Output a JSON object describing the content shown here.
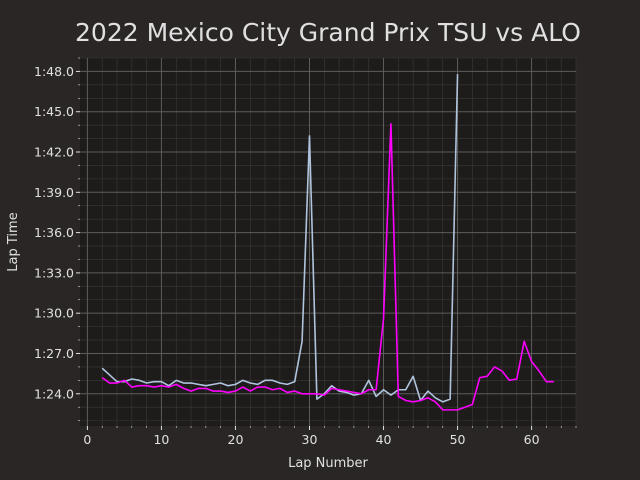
{
  "chart_data": {
    "type": "line",
    "title": "2022 Mexico City Grand Prix TSU vs ALO",
    "xlabel": "Lap Number",
    "ylabel": "Lap Time",
    "xlim": [
      -1,
      66
    ],
    "ylim": [
      81.6,
      109.0
    ],
    "x_ticks": [
      {
        "value": 0,
        "label": "0"
      },
      {
        "value": 10,
        "label": "10"
      },
      {
        "value": 20,
        "label": "20"
      },
      {
        "value": 30,
        "label": "30"
      },
      {
        "value": 40,
        "label": "40"
      },
      {
        "value": 50,
        "label": "50"
      },
      {
        "value": 60,
        "label": "60"
      }
    ],
    "y_ticks": [
      {
        "value": 84,
        "label": "1:24.0"
      },
      {
        "value": 87,
        "label": "1:27.0"
      },
      {
        "value": 90,
        "label": "1:30.0"
      },
      {
        "value": 93,
        "label": "1:33.0"
      },
      {
        "value": 96,
        "label": "1:36.0"
      },
      {
        "value": 99,
        "label": "1:39.0"
      },
      {
        "value": 102,
        "label": "1:42.0"
      },
      {
        "value": 105,
        "label": "1:45.0"
      },
      {
        "value": 108,
        "label": "1:48.0"
      }
    ],
    "grid": true,
    "series": [
      {
        "color": "#b0c4de",
        "x": [
          2,
          3,
          4,
          5,
          6,
          7,
          8,
          9,
          10,
          11,
          12,
          13,
          14,
          15,
          16,
          17,
          18,
          19,
          20,
          21,
          22,
          23,
          24,
          25,
          26,
          27,
          28,
          29,
          30,
          31,
          32,
          33,
          34,
          35,
          36,
          37,
          38,
          39,
          40,
          41,
          42,
          43,
          44,
          45,
          46,
          47,
          48,
          49,
          50
        ],
        "y": [
          85.9,
          85.4,
          84.9,
          84.9,
          85.1,
          85.0,
          84.8,
          84.9,
          84.9,
          84.6,
          85.0,
          84.8,
          84.8,
          84.7,
          84.6,
          84.7,
          84.8,
          84.6,
          84.7,
          85.0,
          84.8,
          84.7,
          85.0,
          85.0,
          84.8,
          84.7,
          84.9,
          87.9,
          103.2,
          83.6,
          84.0,
          84.6,
          84.2,
          84.1,
          83.9,
          84.0,
          85.0,
          83.8,
          84.3,
          83.9,
          84.3,
          84.3,
          85.3,
          83.5,
          84.2,
          83.7,
          83.4,
          83.6,
          107.8
        ]
      },
      {
        "color": "#ff00ff",
        "x": [
          2,
          3,
          4,
          5,
          6,
          7,
          8,
          9,
          10,
          11,
          12,
          13,
          14,
          15,
          16,
          17,
          18,
          19,
          20,
          21,
          22,
          23,
          24,
          25,
          26,
          27,
          28,
          29,
          30,
          31,
          32,
          33,
          34,
          35,
          36,
          37,
          38,
          39,
          40,
          41,
          42,
          43,
          44,
          45,
          46,
          47,
          48,
          49,
          50,
          51,
          52,
          53,
          54,
          55,
          56,
          57,
          58,
          59,
          60,
          61,
          62,
          63
        ],
        "y": [
          85.2,
          84.8,
          84.8,
          85.0,
          84.5,
          84.6,
          84.6,
          84.5,
          84.6,
          84.5,
          84.7,
          84.4,
          84.2,
          84.4,
          84.4,
          84.2,
          84.2,
          84.1,
          84.2,
          84.5,
          84.2,
          84.5,
          84.5,
          84.3,
          84.4,
          84.1,
          84.2,
          84.0,
          84.0,
          84.0,
          83.9,
          84.4,
          84.3,
          84.2,
          84.1,
          84.0,
          84.3,
          84.3,
          89.6,
          104.1,
          83.8,
          83.5,
          83.4,
          83.5,
          83.7,
          83.4,
          82.8,
          82.8,
          82.8,
          83.0,
          83.2,
          85.2,
          85.3,
          86.0,
          85.7,
          85.0,
          85.1,
          87.9,
          86.4,
          85.7,
          84.9,
          84.9
        ]
      }
    ]
  }
}
